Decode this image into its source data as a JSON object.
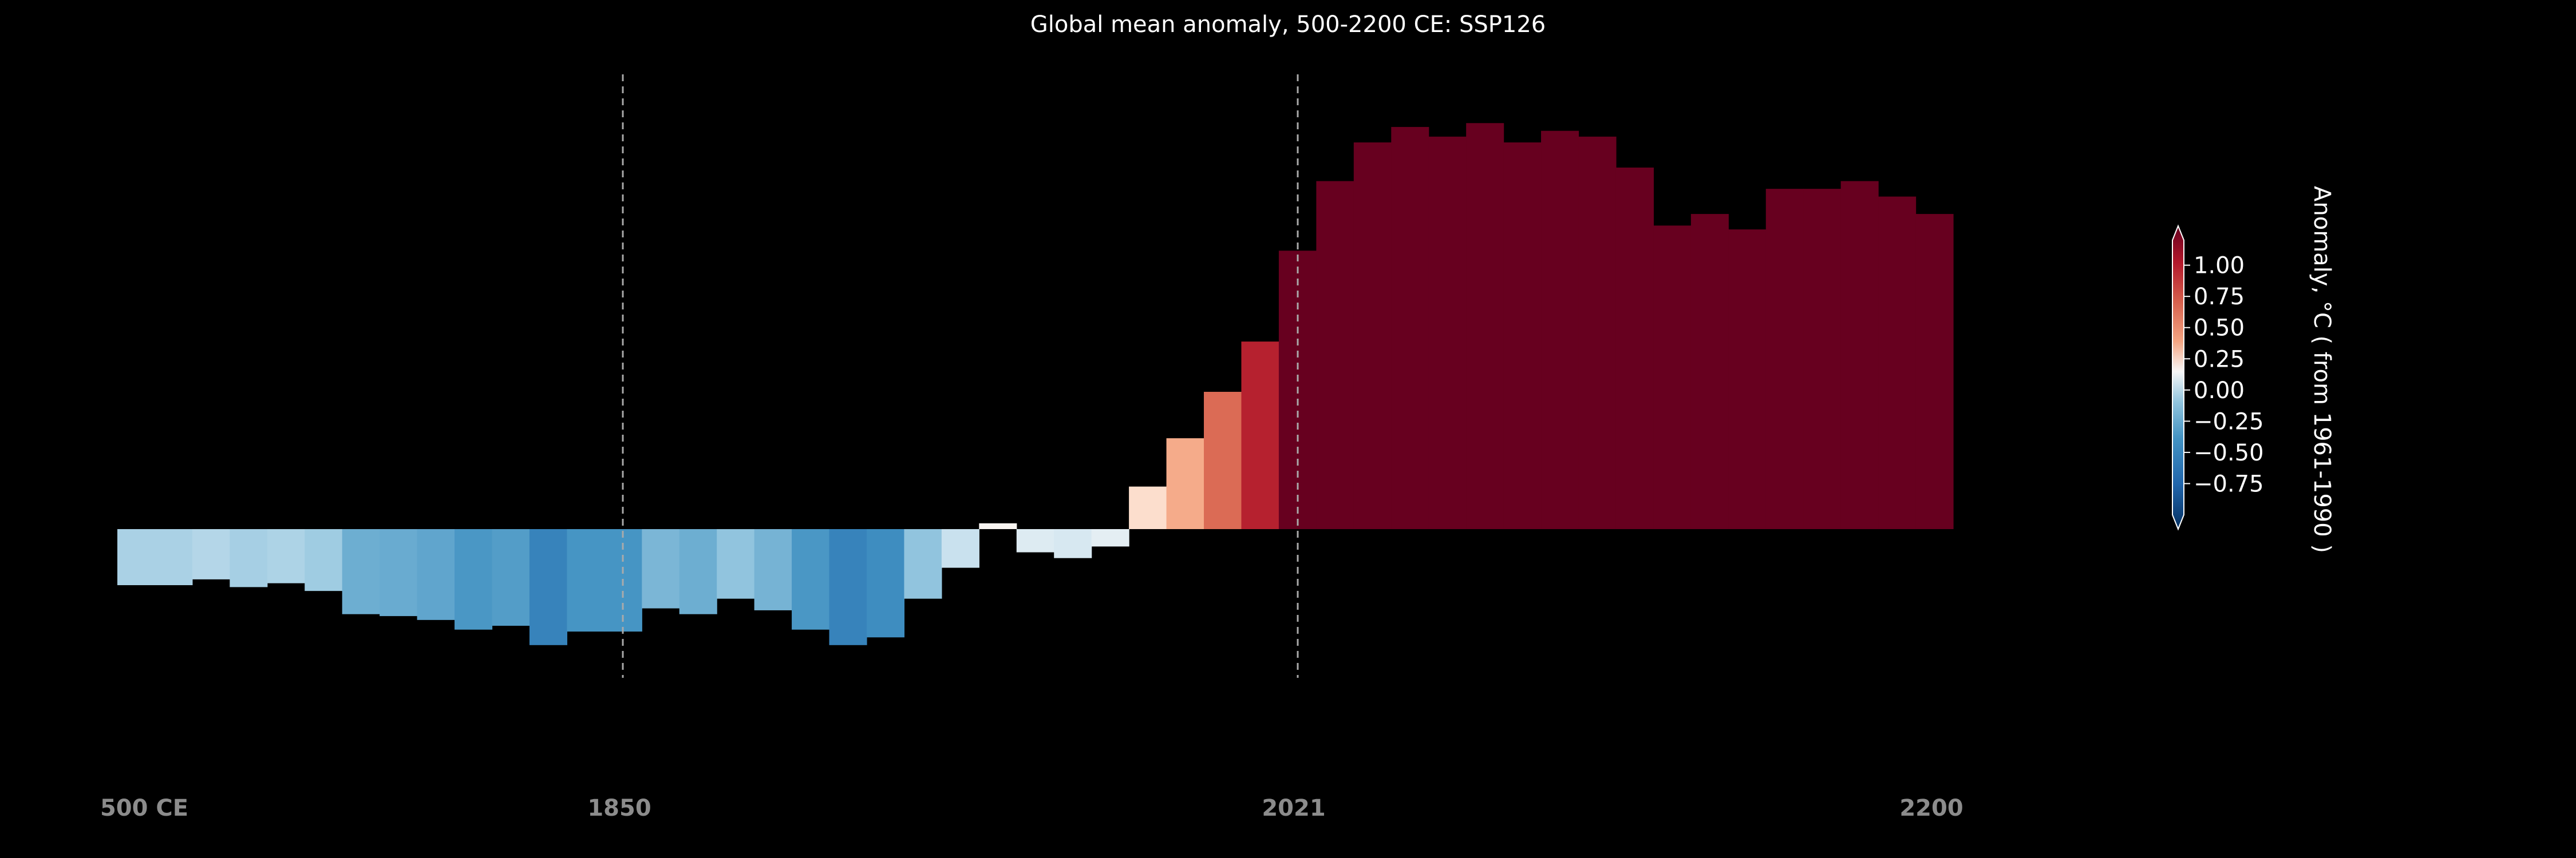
{
  "chart_data": {
    "type": "bar",
    "title": "Global mean anomaly, 500-2200 CE: SSP126",
    "x_tick_labels": [
      "500 CE",
      "1850",
      "2021",
      "2200"
    ],
    "reference_lines": [
      "1850",
      "2021"
    ],
    "values": [
      -0.29,
      -0.29,
      -0.26,
      -0.3,
      -0.28,
      -0.32,
      -0.44,
      -0.45,
      -0.47,
      -0.52,
      -0.5,
      -0.6,
      -0.53,
      -0.53,
      -0.41,
      -0.44,
      -0.36,
      -0.42,
      -0.52,
      -0.6,
      -0.56,
      -0.36,
      -0.2,
      0.03,
      -0.12,
      -0.15,
      -0.09,
      0.22,
      0.47,
      0.71,
      0.97,
      1.44,
      1.8,
      2.0,
      2.08,
      2.03,
      2.1,
      2.0,
      2.06,
      2.03,
      1.87,
      1.57,
      1.63,
      1.55,
      1.76,
      1.76,
      1.8,
      1.72,
      1.63
    ],
    "colorbar": {
      "label": "Anomaly, °C ( from 1961-1990 )",
      "ticks": [
        "1.00",
        "0.75",
        "0.50",
        "0.25",
        "0.00",
        "−0.25",
        "−0.50",
        "−0.75"
      ],
      "range": [
        -1.0,
        1.2
      ]
    },
    "colors": {
      "background": "#000000",
      "positive_max": "#67001f",
      "negative_max": "#053061",
      "neutral": "#f7f7f7"
    },
    "grid": false,
    "legend": "none"
  }
}
